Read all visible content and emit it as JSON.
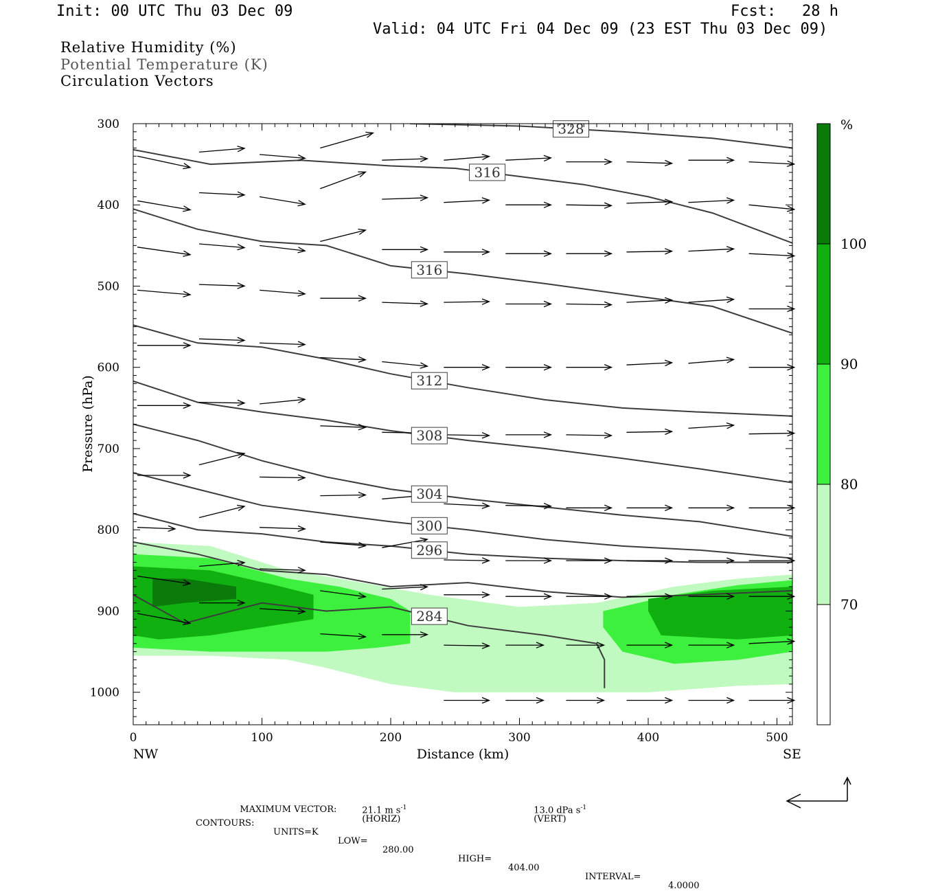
{
  "header": {
    "init": "Init: 00 UTC Thu 03 Dec 09",
    "fcst_label": "Fcst:",
    "fcst_value": "28 h",
    "valid": "Valid: 04 UTC Fri 04 Dec 09 (23 EST Thu 03 Dec 09)"
  },
  "legend": {
    "rh": "Relative Humidity (%)",
    "theta": "Potential Temperature (K)",
    "vectors": "Circulation Vectors"
  },
  "footer": {
    "max_label": "MAXIMUM VECTOR:",
    "horiz_value": "21.1 m s",
    "horiz_exp": "-1",
    "horiz_tag": "(HORIZ)",
    "vert_value": "13.0 dPa s",
    "vert_exp": "-1",
    "vert_tag": "(VERT)",
    "contours_label": "CONTOURS:",
    "units": "UNITS=K",
    "low_label": "LOW=",
    "low_value": "280.00",
    "high_label": "HIGH=",
    "high_value": "404.00",
    "interval_label": "INTERVAL=",
    "interval_value": "4.0000"
  },
  "colors": {
    "rh70": "#c0fac0",
    "rh80": "#3ef03e",
    "rh90": "#10b010",
    "rh100": "#0a7a0a",
    "contour": "#3c3c3c",
    "text": "#000000"
  },
  "chart_data": {
    "type": "cross-section",
    "xlabel": "Distance (km)",
    "ylabel": "Pressure (hPa)",
    "xlim": [
      0,
      512
    ],
    "ylim": [
      1040,
      300
    ],
    "x_ticks": [
      "0",
      "100",
      "200",
      "300",
      "400",
      "500"
    ],
    "y_ticks": [
      "300",
      "400",
      "500",
      "600",
      "700",
      "800",
      "900",
      "1000"
    ],
    "x_tick_values": [
      0,
      100,
      200,
      300,
      400,
      500
    ],
    "y_tick_values": [
      300,
      400,
      500,
      600,
      700,
      800,
      900,
      1000
    ],
    "left_end_label": "NW",
    "right_end_label": "SE",
    "colorbar": {
      "unit": "%",
      "labels": [
        "100",
        "90",
        "80",
        "70"
      ],
      "levels": [
        100,
        90,
        80,
        70
      ]
    },
    "theta_contours": [
      {
        "label": "328",
        "x": [
          215,
          300,
          380,
          450,
          512
        ],
        "p": [
          300,
          303,
          310,
          318,
          330
        ]
      },
      {
        "label": "316",
        "x": [
          0,
          60,
          130,
          200,
          250,
          300,
          350,
          400,
          450,
          512
        ],
        "p": [
          332,
          350,
          345,
          352,
          355,
          365,
          375,
          390,
          410,
          447
        ]
      },
      {
        "label": "316",
        "x": [
          0,
          50,
          100,
          150,
          200,
          260,
          320,
          380,
          450,
          512
        ],
        "p": [
          405,
          430,
          445,
          450,
          475,
          485,
          497,
          510,
          525,
          558
        ]
      },
      {
        "label": "312",
        "x": [
          0,
          50,
          100,
          150,
          200,
          260,
          320,
          380,
          440,
          512
        ],
        "p": [
          548,
          570,
          575,
          590,
          608,
          625,
          640,
          650,
          655,
          660
        ]
      },
      {
        "label": "308",
        "x": [
          0,
          50,
          100,
          150,
          200,
          260,
          320,
          380,
          440,
          512
        ],
        "p": [
          617,
          643,
          655,
          665,
          678,
          690,
          700,
          712,
          725,
          742
        ]
      },
      {
        "label": "304",
        "x": [
          0,
          50,
          100,
          150,
          200,
          260,
          320,
          380,
          440,
          512
        ],
        "p": [
          670,
          690,
          715,
          735,
          750,
          762,
          772,
          782,
          790,
          808
        ]
      },
      {
        "label": "300",
        "x": [
          0,
          50,
          100,
          150,
          200,
          260,
          320,
          380,
          440,
          512
        ],
        "p": [
          730,
          750,
          770,
          780,
          790,
          800,
          812,
          820,
          825,
          835
        ]
      },
      {
        "label": "296",
        "x": [
          0,
          50,
          100,
          150,
          200,
          260,
          320,
          380,
          440,
          512
        ],
        "p": [
          780,
          800,
          805,
          815,
          820,
          830,
          835,
          838,
          840,
          840
        ]
      },
      {
        "label": "",
        "x": [
          0,
          50,
          100,
          150,
          200,
          260,
          320,
          380,
          440,
          512
        ],
        "p": [
          815,
          830,
          850,
          855,
          870,
          865,
          876,
          883,
          880,
          875
        ]
      },
      {
        "label": "284",
        "x": [
          0,
          40,
          100,
          150,
          200,
          260,
          320,
          360,
          366,
          366
        ],
        "p": [
          880,
          915,
          890,
          900,
          895,
          918,
          930,
          940,
          960,
          995
        ]
      }
    ],
    "rh_regions": [
      {
        "level": 70,
        "outline": [
          [
            0,
            815
          ],
          [
            60,
            820
          ],
          [
            120,
            850
          ],
          [
            160,
            860
          ],
          [
            230,
            880
          ],
          [
            300,
            895
          ],
          [
            360,
            890
          ],
          [
            420,
            870
          ],
          [
            470,
            860
          ],
          [
            512,
            855
          ],
          [
            512,
            990
          ],
          [
            470,
            992
          ],
          [
            400,
            1000
          ],
          [
            330,
            1000
          ],
          [
            250,
            1000
          ],
          [
            200,
            990
          ],
          [
            150,
            970
          ],
          [
            120,
            960
          ],
          [
            60,
            955
          ],
          [
            0,
            955
          ]
        ]
      },
      {
        "level": 80,
        "outline": [
          [
            0,
            830
          ],
          [
            60,
            835
          ],
          [
            120,
            860
          ],
          [
            160,
            870
          ],
          [
            200,
            885
          ],
          [
            215,
            900
          ],
          [
            215,
            940
          ],
          [
            190,
            945
          ],
          [
            150,
            950
          ],
          [
            110,
            950
          ],
          [
            60,
            950
          ],
          [
            0,
            945
          ]
        ]
      },
      {
        "level": 80,
        "outline": [
          [
            365,
            900
          ],
          [
            420,
            880
          ],
          [
            470,
            868
          ],
          [
            512,
            862
          ],
          [
            512,
            950
          ],
          [
            470,
            960
          ],
          [
            420,
            965
          ],
          [
            380,
            950
          ],
          [
            365,
            920
          ]
        ]
      },
      {
        "level": 90,
        "outline": [
          [
            0,
            845
          ],
          [
            60,
            850
          ],
          [
            110,
            868
          ],
          [
            140,
            880
          ],
          [
            140,
            910
          ],
          [
            100,
            920
          ],
          [
            60,
            930
          ],
          [
            20,
            935
          ],
          [
            0,
            930
          ]
        ]
      },
      {
        "level": 90,
        "outline": [
          [
            400,
            885
          ],
          [
            450,
            875
          ],
          [
            512,
            870
          ],
          [
            512,
            930
          ],
          [
            470,
            935
          ],
          [
            410,
            930
          ],
          [
            400,
            900
          ]
        ]
      },
      {
        "level": 100,
        "outline": [
          [
            15,
            860
          ],
          [
            40,
            860
          ],
          [
            80,
            870
          ],
          [
            80,
            885
          ],
          [
            40,
            890
          ],
          [
            15,
            895
          ]
        ]
      }
    ],
    "vectors": [
      {
        "x": 0,
        "p": 340,
        "u": 7,
        "w": -1.5
      },
      {
        "x": 48,
        "p": 335,
        "u": 6,
        "w": 0.5
      },
      {
        "x": 95,
        "p": 338,
        "u": 6,
        "w": -0.5
      },
      {
        "x": 142,
        "p": 330,
        "u": 7,
        "w": 2
      },
      {
        "x": 190,
        "p": 345,
        "u": 6,
        "w": 0.2
      },
      {
        "x": 238,
        "p": 345,
        "u": 6,
        "w": 0.5
      },
      {
        "x": 286,
        "p": 345,
        "u": 6,
        "w": 0.3
      },
      {
        "x": 333,
        "p": 347,
        "u": 6,
        "w": 0
      },
      {
        "x": 380,
        "p": 347,
        "u": 6,
        "w": -0.2
      },
      {
        "x": 428,
        "p": 345,
        "u": 6,
        "w": 0
      },
      {
        "x": 475,
        "p": 347,
        "u": 6,
        "w": -0.3
      },
      {
        "x": 0,
        "p": 395,
        "u": 7,
        "w": -1.2
      },
      {
        "x": 48,
        "p": 385,
        "u": 6,
        "w": -0.3
      },
      {
        "x": 95,
        "p": 390,
        "u": 6,
        "w": -1
      },
      {
        "x": 142,
        "p": 380,
        "u": 6,
        "w": 2.2
      },
      {
        "x": 190,
        "p": 393,
        "u": 6,
        "w": 0.2
      },
      {
        "x": 238,
        "p": 397,
        "u": 6,
        "w": 0.3
      },
      {
        "x": 286,
        "p": 400,
        "u": 6,
        "w": 0
      },
      {
        "x": 333,
        "p": 400,
        "u": 6,
        "w": -0.1
      },
      {
        "x": 380,
        "p": 398,
        "u": 6,
        "w": 0.2
      },
      {
        "x": 428,
        "p": 397,
        "u": 6,
        "w": 0.3
      },
      {
        "x": 475,
        "p": 400,
        "u": 6,
        "w": -0.6
      },
      {
        "x": 0,
        "p": 452,
        "u": 7,
        "w": -1
      },
      {
        "x": 48,
        "p": 448,
        "u": 6,
        "w": -0.5
      },
      {
        "x": 95,
        "p": 450,
        "u": 6,
        "w": -0.7
      },
      {
        "x": 142,
        "p": 445,
        "u": 6,
        "w": 1.5
      },
      {
        "x": 190,
        "p": 455,
        "u": 6,
        "w": 0
      },
      {
        "x": 238,
        "p": 458,
        "u": 6,
        "w": 0
      },
      {
        "x": 286,
        "p": 460,
        "u": 6,
        "w": 0
      },
      {
        "x": 333,
        "p": 460,
        "u": 6,
        "w": 0
      },
      {
        "x": 380,
        "p": 458,
        "u": 6,
        "w": 0.1
      },
      {
        "x": 428,
        "p": 457,
        "u": 6,
        "w": 0.3
      },
      {
        "x": 475,
        "p": 460,
        "u": 6,
        "w": -0.3
      },
      {
        "x": 0,
        "p": 505,
        "u": 7,
        "w": -0.6
      },
      {
        "x": 48,
        "p": 498,
        "u": 6,
        "w": -0.2
      },
      {
        "x": 95,
        "p": 505,
        "u": 6,
        "w": -0.5
      },
      {
        "x": 142,
        "p": 515,
        "u": 6,
        "w": 0
      },
      {
        "x": 190,
        "p": 520,
        "u": 6,
        "w": -0.2
      },
      {
        "x": 238,
        "p": 520,
        "u": 6,
        "w": 0.1
      },
      {
        "x": 286,
        "p": 522,
        "u": 6,
        "w": 0
      },
      {
        "x": 333,
        "p": 522,
        "u": 6,
        "w": -0.1
      },
      {
        "x": 380,
        "p": 520,
        "u": 6,
        "w": 0.3
      },
      {
        "x": 428,
        "p": 520,
        "u": 6,
        "w": 0.4
      },
      {
        "x": 475,
        "p": 528,
        "u": 6,
        "w": 0
      },
      {
        "x": 0,
        "p": 573,
        "u": 7,
        "w": 0
      },
      {
        "x": 48,
        "p": 565,
        "u": 6,
        "w": -0.2
      },
      {
        "x": 95,
        "p": 570,
        "u": 6,
        "w": -0.2
      },
      {
        "x": 142,
        "p": 588,
        "u": 6,
        "w": -0.3
      },
      {
        "x": 190,
        "p": 593,
        "u": 6,
        "w": -0.6
      },
      {
        "x": 238,
        "p": 600,
        "u": 6,
        "w": 0
      },
      {
        "x": 286,
        "p": 600,
        "u": 6,
        "w": 0
      },
      {
        "x": 333,
        "p": 600,
        "u": 6,
        "w": 0
      },
      {
        "x": 380,
        "p": 597,
        "u": 6,
        "w": 0.3
      },
      {
        "x": 428,
        "p": 595,
        "u": 6,
        "w": 0.5
      },
      {
        "x": 475,
        "p": 600,
        "u": 6,
        "w": 0
      },
      {
        "x": 0,
        "p": 647,
        "u": 7,
        "w": 0
      },
      {
        "x": 48,
        "p": 643,
        "u": 6,
        "w": -0.1
      },
      {
        "x": 95,
        "p": 645,
        "u": 6,
        "w": 0.6
      },
      {
        "x": 142,
        "p": 672,
        "u": 6,
        "w": -0.2
      },
      {
        "x": 190,
        "p": 680,
        "u": 6,
        "w": -0.1
      },
      {
        "x": 238,
        "p": 683,
        "u": 6,
        "w": -0.1
      },
      {
        "x": 286,
        "p": 683,
        "u": 6,
        "w": 0
      },
      {
        "x": 333,
        "p": 683,
        "u": 6,
        "w": -0.1
      },
      {
        "x": 380,
        "p": 680,
        "u": 6,
        "w": 0.1
      },
      {
        "x": 428,
        "p": 675,
        "u": 6,
        "w": 0.4
      },
      {
        "x": 475,
        "p": 682,
        "u": 6,
        "w": 0.1
      },
      {
        "x": 0,
        "p": 733,
        "u": 7,
        "w": 0
      },
      {
        "x": 48,
        "p": 720,
        "u": 6,
        "w": 1.5
      },
      {
        "x": 95,
        "p": 735,
        "u": 6,
        "w": -0.1
      },
      {
        "x": 142,
        "p": 758,
        "u": 6,
        "w": 0.1
      },
      {
        "x": 190,
        "p": 762,
        "u": 6,
        "w": 0.5
      },
      {
        "x": 238,
        "p": 768,
        "u": 6,
        "w": -0.3
      },
      {
        "x": 286,
        "p": 770,
        "u": 6,
        "w": -0.1
      },
      {
        "x": 333,
        "p": 773,
        "u": 6,
        "w": 0
      },
      {
        "x": 380,
        "p": 773,
        "u": 6,
        "w": 0
      },
      {
        "x": 428,
        "p": 773,
        "u": 6,
        "w": 0
      },
      {
        "x": 475,
        "p": 773,
        "u": 6,
        "w": 0
      },
      {
        "x": 0,
        "p": 797,
        "u": 5,
        "w": -0.2
      },
      {
        "x": 48,
        "p": 785,
        "u": 6,
        "w": 1.5
      },
      {
        "x": 95,
        "p": 797,
        "u": 6,
        "w": -0.2
      },
      {
        "x": 142,
        "p": 815,
        "u": 6,
        "w": -0.5
      },
      {
        "x": 190,
        "p": 822,
        "u": 6,
        "w": 1.1
      },
      {
        "x": 238,
        "p": 837,
        "u": 6,
        "w": -0.1
      },
      {
        "x": 286,
        "p": 838,
        "u": 6,
        "w": 0
      },
      {
        "x": 333,
        "p": 838,
        "u": 6,
        "w": 0
      },
      {
        "x": 380,
        "p": 838,
        "u": 6,
        "w": 0
      },
      {
        "x": 428,
        "p": 838,
        "u": 6,
        "w": 0
      },
      {
        "x": 475,
        "p": 838,
        "u": 6,
        "w": 0
      },
      {
        "x": 0,
        "p": 857,
        "u": 7,
        "w": -1
      },
      {
        "x": 48,
        "p": 845,
        "u": 6,
        "w": 0.5
      },
      {
        "x": 95,
        "p": 848,
        "u": 6,
        "w": -0.2
      },
      {
        "x": 142,
        "p": 875,
        "u": 6,
        "w": -0.8
      },
      {
        "x": 190,
        "p": 873,
        "u": 6,
        "w": 0.3
      },
      {
        "x": 238,
        "p": 880,
        "u": 6,
        "w": 0
      },
      {
        "x": 286,
        "p": 882,
        "u": 6,
        "w": 0
      },
      {
        "x": 333,
        "p": 882,
        "u": 6,
        "w": 0
      },
      {
        "x": 380,
        "p": 882,
        "u": 6,
        "w": 0
      },
      {
        "x": 428,
        "p": 882,
        "u": 6,
        "w": 0
      },
      {
        "x": 475,
        "p": 882,
        "u": 6,
        "w": 0
      },
      {
        "x": 0,
        "p": 903,
        "u": 7,
        "w": -1.3
      },
      {
        "x": 48,
        "p": 890,
        "u": 6,
        "w": 0
      },
      {
        "x": 95,
        "p": 897,
        "u": 6,
        "w": -0.4
      },
      {
        "x": 142,
        "p": 928,
        "u": 6,
        "w": -0.4
      },
      {
        "x": 190,
        "p": 929,
        "u": 6,
        "w": 0
      },
      {
        "x": 238,
        "p": 942,
        "u": 6,
        "w": -0.1
      },
      {
        "x": 286,
        "p": 942,
        "u": 5,
        "w": 0
      },
      {
        "x": 333,
        "p": 942,
        "u": 5,
        "w": 0
      },
      {
        "x": 380,
        "p": 942,
        "u": 6,
        "w": 0
      },
      {
        "x": 428,
        "p": 942,
        "u": 6,
        "w": 0
      },
      {
        "x": 475,
        "p": 940,
        "u": 6,
        "w": 0.3
      },
      {
        "x": 238,
        "p": 1010,
        "u": 6,
        "w": 0
      },
      {
        "x": 286,
        "p": 1010,
        "u": 5,
        "w": 0
      },
      {
        "x": 333,
        "p": 1010,
        "u": 5,
        "w": 0
      },
      {
        "x": 380,
        "p": 1010,
        "u": 6,
        "w": 0
      },
      {
        "x": 428,
        "p": 1010,
        "u": 6,
        "w": 0
      },
      {
        "x": 475,
        "p": 1010,
        "u": 6,
        "w": 0
      }
    ]
  }
}
